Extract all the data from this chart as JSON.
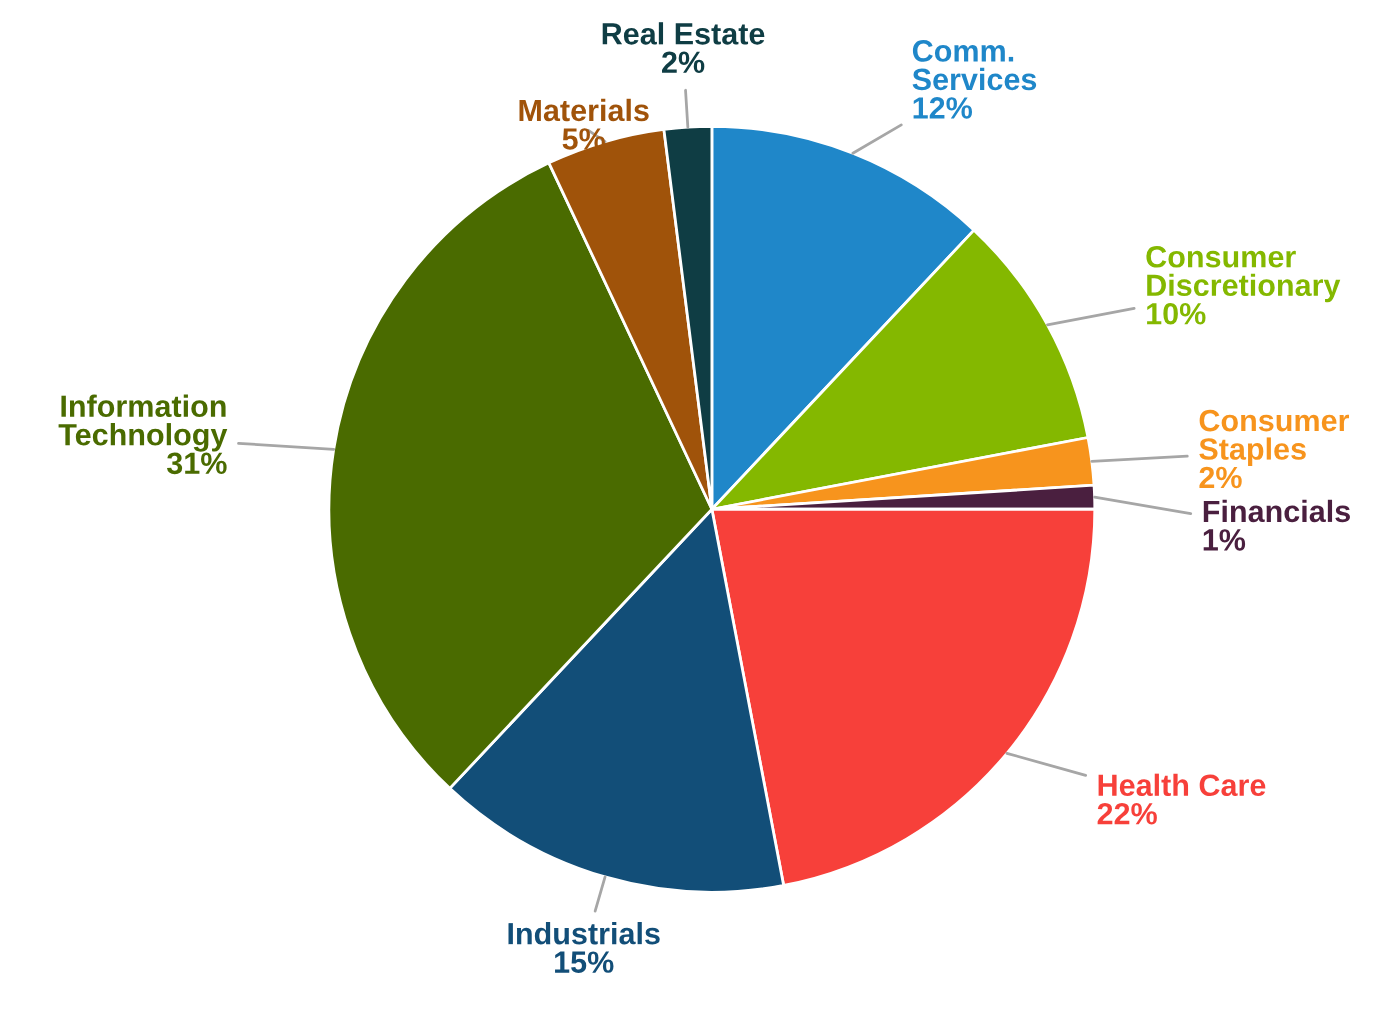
{
  "chart_data": {
    "type": "pie",
    "categories": [
      "Comm.\nServices",
      "Consumer\nDiscretionary",
      "Consumer\nStaples",
      "Financials",
      "Health Care",
      "Industrials",
      "Information\nTechnology",
      "Materials",
      "Real Estate"
    ],
    "values": [
      12,
      10,
      2,
      1,
      22,
      15,
      31,
      5,
      2
    ],
    "colors": [
      "#1f87c9",
      "#84b800",
      "#f7941d",
      "#4a1f3f",
      "#f7403a",
      "#124e78",
      "#4a6b00",
      "#a0530a",
      "#0f3d44"
    ],
    "value_labels": [
      "12%",
      "10%",
      "2%",
      "1%",
      "22%",
      "15%",
      "31%",
      "5%",
      "2%"
    ],
    "legend": false
  }
}
